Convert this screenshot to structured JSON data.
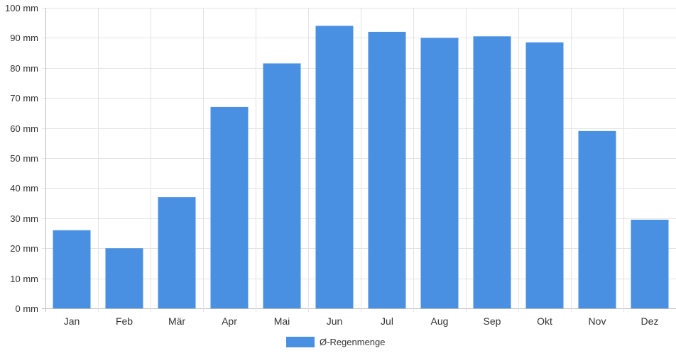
{
  "chart_data": {
    "type": "bar",
    "categories": [
      "Jan",
      "Feb",
      "Mär",
      "Apr",
      "Mai",
      "Jun",
      "Jul",
      "Aug",
      "Sep",
      "Okt",
      "Nov",
      "Dez"
    ],
    "series": [
      {
        "name": "Ø-Regenmenge",
        "values": [
          26,
          20,
          37,
          67,
          81.5,
          94,
          92,
          90,
          90.5,
          88.5,
          59,
          29.5
        ],
        "color": "#4a90e2"
      }
    ],
    "y_ticks": [
      "0 mm",
      "10 mm",
      "20 mm",
      "30 mm",
      "40 mm",
      "50 mm",
      "60 mm",
      "70 mm",
      "80 mm",
      "90 mm",
      "100 mm"
    ],
    "ylim": [
      0,
      100
    ],
    "y_unit": "mm",
    "grid": true,
    "legend_position": "bottom-center"
  }
}
